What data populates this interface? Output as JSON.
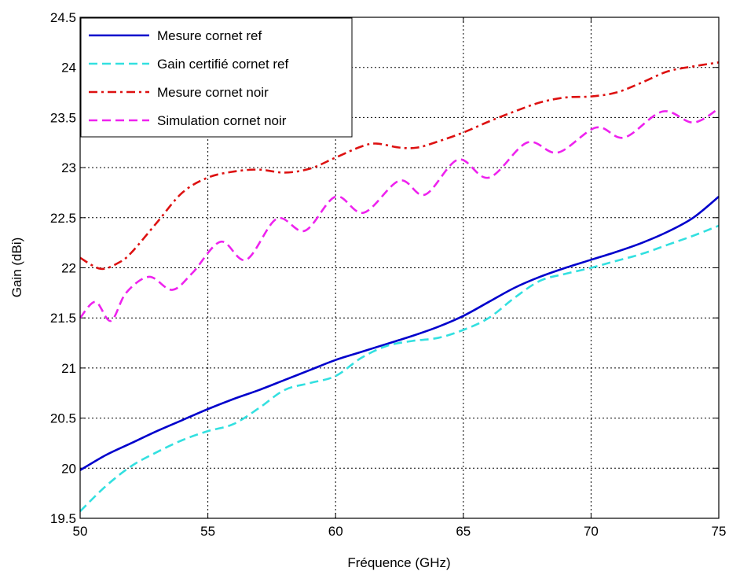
{
  "chart_data": {
    "type": "line",
    "xlabel": "Fréquence (GHz)",
    "ylabel": "Gain (dBi)",
    "xlim": [
      50,
      75
    ],
    "ylim": [
      19.5,
      24.5
    ],
    "xticks": [
      "50",
      "55",
      "60",
      "65",
      "70",
      "75"
    ],
    "yticks": [
      "19.5",
      "20",
      "20.5",
      "21",
      "21.5",
      "22",
      "22.5",
      "23",
      "23.5",
      "24",
      "24.5"
    ],
    "grid": true,
    "legend_position": "top-left",
    "series": [
      {
        "name": "Mesure cornet ref",
        "color": "#0000cc",
        "style": "solid",
        "x": [
          50,
          51,
          52,
          53,
          54,
          55,
          56,
          57,
          58,
          59,
          60,
          61,
          62,
          63,
          64,
          65,
          66,
          67,
          68,
          69,
          70,
          71,
          72,
          73,
          74,
          75
        ],
        "y": [
          19.98,
          20.13,
          20.25,
          20.37,
          20.48,
          20.59,
          20.69,
          20.78,
          20.88,
          20.98,
          21.08,
          21.16,
          21.24,
          21.32,
          21.41,
          21.52,
          21.66,
          21.8,
          21.91,
          22.0,
          22.08,
          22.16,
          22.25,
          22.36,
          22.5,
          22.71
        ]
      },
      {
        "name": "Gain certifié cornet ref",
        "color": "#33e0e0",
        "style": "dashed",
        "x": [
          50,
          51,
          52,
          53,
          54,
          55,
          56,
          57,
          58,
          59,
          60,
          61,
          62,
          63,
          64,
          65,
          66,
          67,
          68,
          69,
          70,
          71,
          72,
          73,
          74,
          75
        ],
        "y": [
          19.57,
          19.82,
          20.02,
          20.16,
          20.28,
          20.37,
          20.44,
          20.6,
          20.78,
          20.85,
          20.92,
          21.1,
          21.22,
          21.27,
          21.3,
          21.38,
          21.5,
          21.7,
          21.87,
          21.94,
          22.0,
          22.07,
          22.14,
          22.23,
          22.32,
          22.42
        ]
      },
      {
        "name": "Mesure cornet noir",
        "color": "#dd1111",
        "style": "dashdot",
        "x": [
          50,
          50.8,
          51.5,
          52,
          53,
          54,
          55,
          56,
          57,
          58,
          59,
          60,
          61,
          61.6,
          62.5,
          63.2,
          64,
          65,
          66,
          67,
          68,
          69,
          70,
          71,
          72,
          73,
          74,
          75
        ],
        "y": [
          22.1,
          21.99,
          22.05,
          22.15,
          22.45,
          22.75,
          22.9,
          22.96,
          22.98,
          22.95,
          22.99,
          23.1,
          23.21,
          23.24,
          23.2,
          23.2,
          23.26,
          23.35,
          23.46,
          23.56,
          23.65,
          23.7,
          23.71,
          23.75,
          23.85,
          23.96,
          24.01,
          24.05
        ]
      },
      {
        "name": "Simulation cornet noir",
        "color": "#ee22ee",
        "style": "dashed",
        "x": [
          50,
          50.6,
          51.2,
          51.8,
          52.7,
          53.6,
          54.4,
          55.5,
          56.5,
          57.7,
          58.8,
          60.0,
          61.1,
          62.5,
          63.5,
          64.8,
          66.0,
          67.5,
          68.7,
          70.2,
          71.3,
          72.8,
          74.0,
          75
        ],
        "y": [
          21.5,
          21.66,
          21.47,
          21.75,
          21.91,
          21.78,
          21.95,
          22.26,
          22.08,
          22.49,
          22.37,
          22.71,
          22.55,
          22.87,
          22.73,
          23.08,
          22.9,
          23.25,
          23.15,
          23.4,
          23.3,
          23.56,
          23.45,
          23.59
        ]
      }
    ]
  }
}
